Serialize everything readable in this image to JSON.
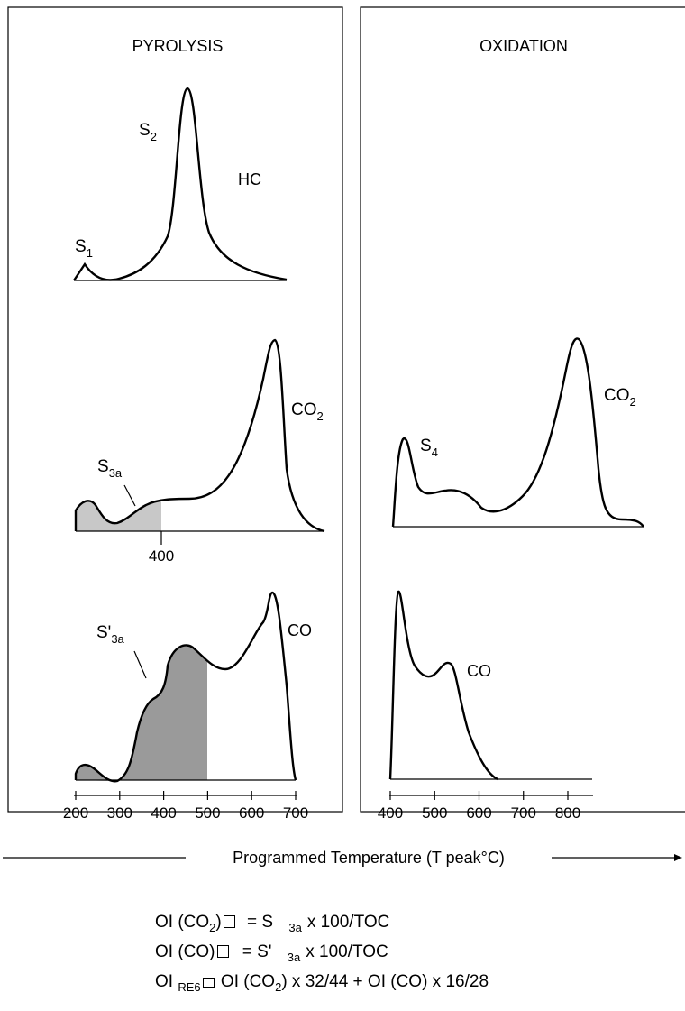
{
  "panels": {
    "pyrolysis_title": "PYROLYSIS",
    "oxidation_title": "OXIDATION"
  },
  "pyrolysis": {
    "hc": {
      "label": "HC",
      "peak_s1": "S",
      "peak_s1_sub": "1",
      "peak_s2": "S",
      "peak_s2_sub": "2"
    },
    "co2": {
      "label_main": "CO",
      "label_sub": "2",
      "peak": "S",
      "peak_sub": "3a",
      "cutoff_label": "400"
    },
    "co": {
      "label": "CO",
      "peak": "S'",
      "peak_sub": "3a"
    },
    "axis_ticks": [
      "200",
      "300",
      "400",
      "500",
      "600",
      "700"
    ]
  },
  "oxidation": {
    "co2": {
      "label_main": "CO",
      "label_sub": "2",
      "peak": "S",
      "peak_sub": "4"
    },
    "co": {
      "label": "CO"
    },
    "axis_ticks": [
      "400",
      "500",
      "600",
      "700",
      "800"
    ]
  },
  "axis_caption": "Programmed Temperature (T peak°C)",
  "formulas": [
    {
      "lhs": "OI (CO",
      "lhs_sub": "2",
      "lhs_end": ")",
      "rhs_a": "= S",
      "rhs_sub": "3a",
      "rhs_b": "x 100/TOC"
    },
    {
      "lhs": "OI (CO)",
      "rhs_a": "= S'",
      "rhs_sub": "3a",
      "rhs_b": "x 100/TOC"
    },
    {
      "lhs": "OI",
      "lhs_sub": "RE6",
      "rhs_a": "OI (CO",
      "rhs_a_sub": "2",
      "rhs_b": ") x 32/44  + OI (CO) x 16/28"
    }
  ]
}
